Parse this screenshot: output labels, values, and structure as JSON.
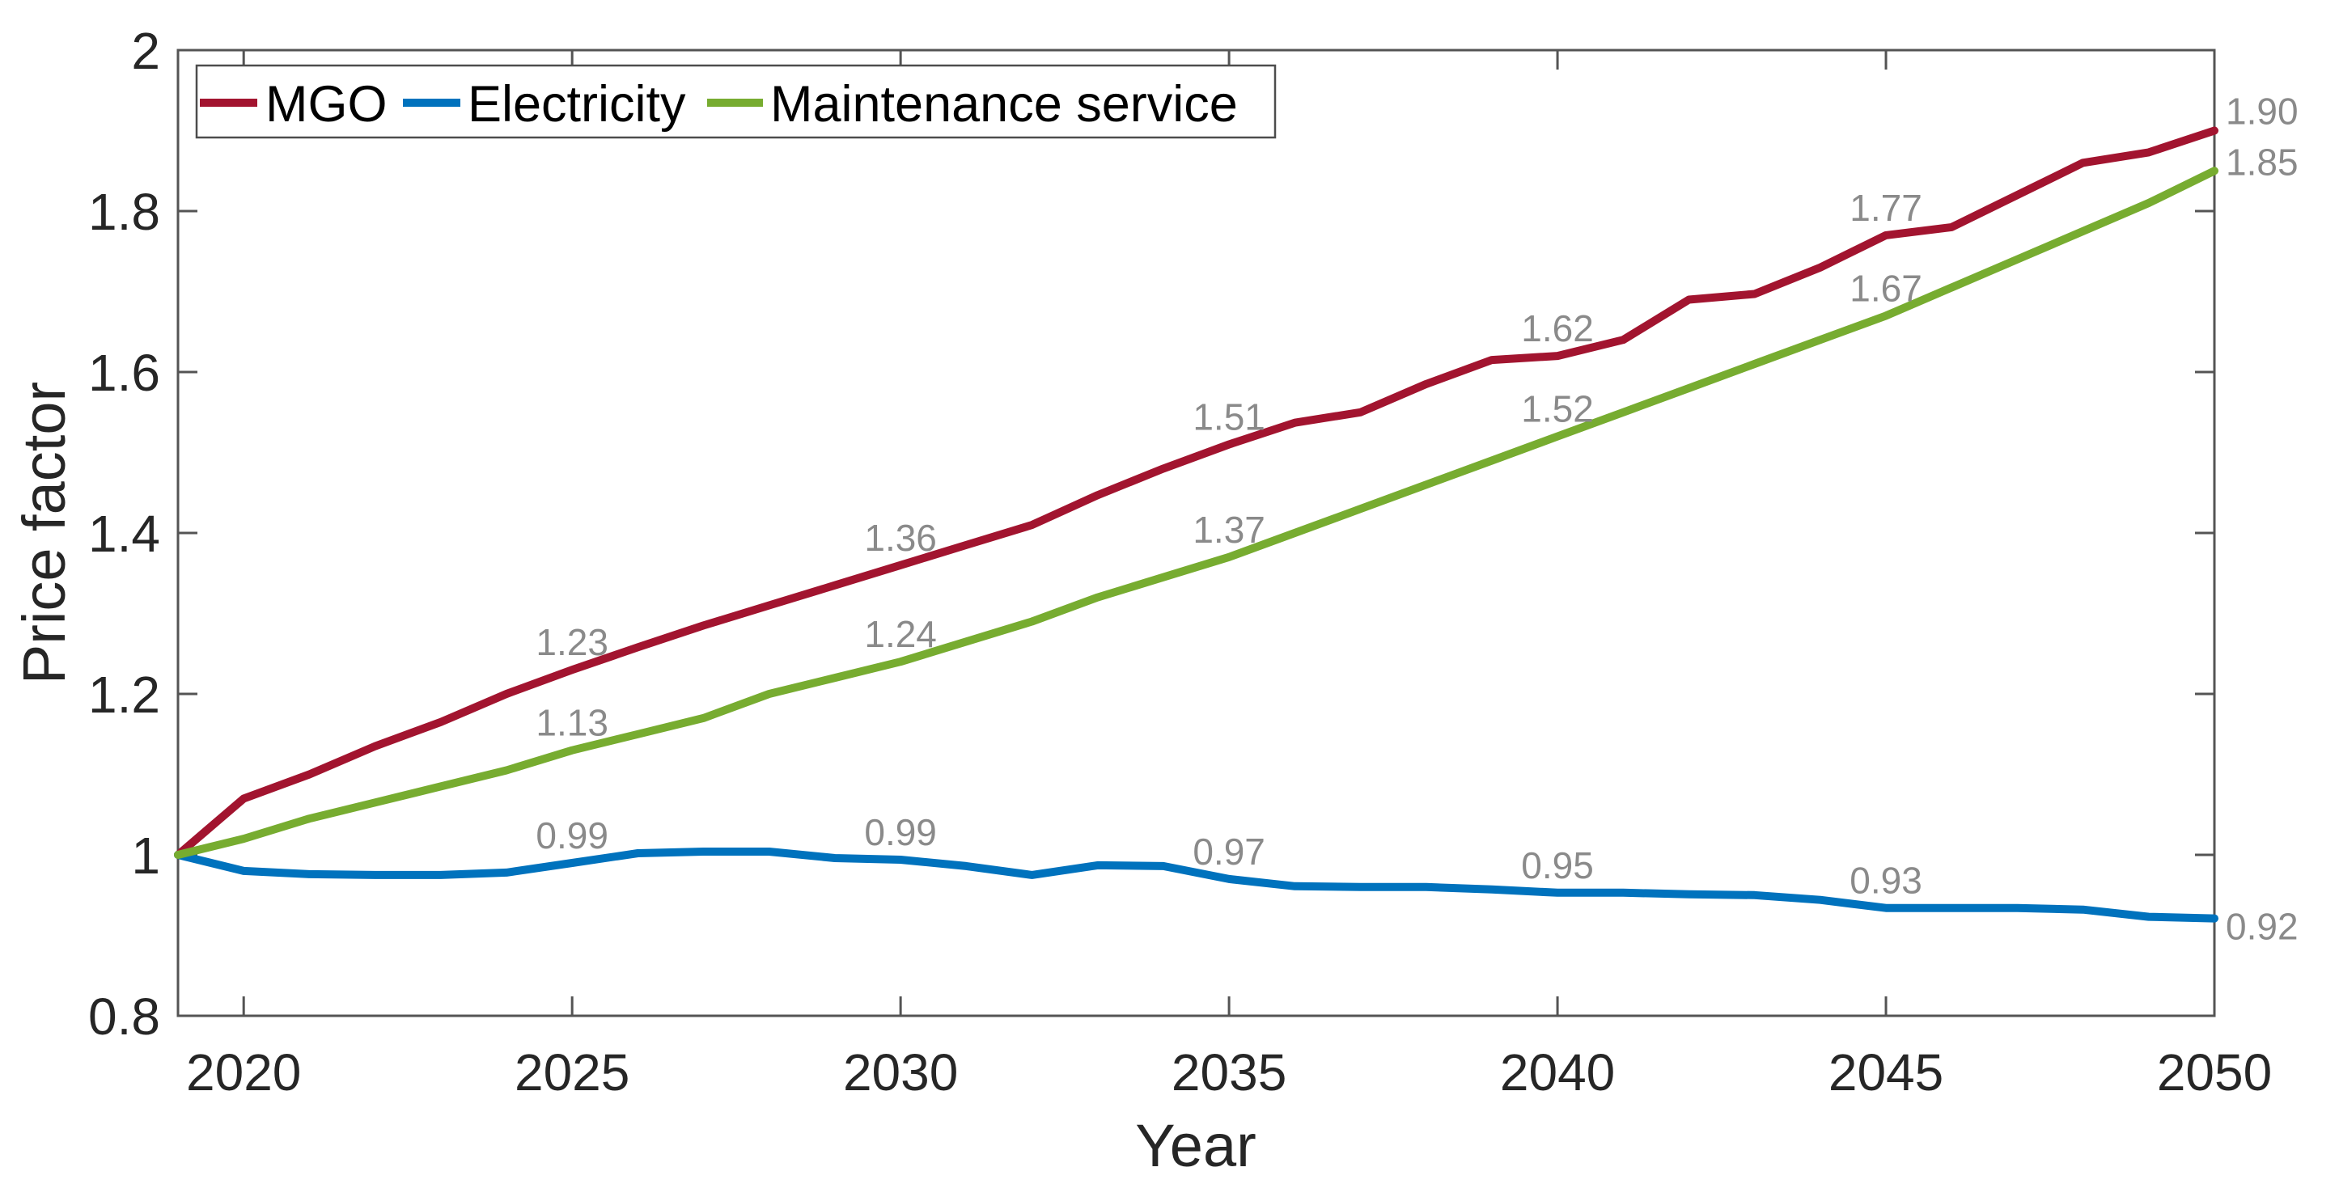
{
  "chart_data": {
    "type": "line",
    "title": "",
    "xlabel": "Year",
    "ylabel": "Price factor",
    "xlim": [
      2019,
      2050
    ],
    "ylim": [
      0.8,
      2
    ],
    "grid": false,
    "legend_position": "top-left-inside",
    "x_ticks": [
      2020,
      2025,
      2030,
      2035,
      2040,
      2045,
      2050
    ],
    "x_tick_labels": [
      "2020",
      "2025",
      "2030",
      "2035",
      "2040",
      "2045",
      "2050"
    ],
    "y_ticks": [
      0.8,
      1,
      1.2,
      1.4,
      1.6,
      1.8,
      2
    ],
    "y_tick_labels": [
      "0.8",
      "1",
      "1.2",
      "1.4",
      "1.6",
      "1.8",
      "2"
    ],
    "point_label_color": "#8a8a8a",
    "x": [
      2019,
      2020,
      2021,
      2022,
      2023,
      2024,
      2025,
      2026,
      2027,
      2028,
      2029,
      2030,
      2031,
      2032,
      2033,
      2034,
      2035,
      2036,
      2037,
      2038,
      2039,
      2040,
      2041,
      2042,
      2043,
      2044,
      2045,
      2046,
      2047,
      2048,
      2049,
      2050
    ],
    "series": [
      {
        "name": "MGO",
        "color": "#A2142F",
        "values": [
          1.0,
          1.07,
          1.1,
          1.135,
          1.165,
          1.2,
          1.23,
          1.258,
          1.285,
          1.31,
          1.335,
          1.36,
          1.385,
          1.41,
          1.447,
          1.48,
          1.51,
          1.537,
          1.55,
          1.585,
          1.615,
          1.62,
          1.64,
          1.69,
          1.697,
          1.73,
          1.77,
          1.78,
          1.82,
          1.86,
          1.873,
          1.9
        ],
        "point_labels": [
          {
            "year": 2025,
            "text": "1.23"
          },
          {
            "year": 2030,
            "text": "1.36"
          },
          {
            "year": 2035,
            "text": "1.51"
          },
          {
            "year": 2040,
            "text": "1.62"
          },
          {
            "year": 2045,
            "text": "1.77"
          }
        ],
        "end_label": "1.90"
      },
      {
        "name": "Electricity",
        "color": "#0072BD",
        "values": [
          1.0,
          0.98,
          0.976,
          0.975,
          0.975,
          0.978,
          0.99,
          1.002,
          1.004,
          1.004,
          0.996,
          0.994,
          0.986,
          0.975,
          0.987,
          0.986,
          0.97,
          0.961,
          0.96,
          0.96,
          0.957,
          0.953,
          0.953,
          0.951,
          0.95,
          0.944,
          0.934,
          0.934,
          0.934,
          0.932,
          0.923,
          0.921
        ],
        "point_labels": [
          {
            "year": 2025,
            "text": "0.99"
          },
          {
            "year": 2030,
            "text": "0.99"
          },
          {
            "year": 2035,
            "text": "0.97"
          },
          {
            "year": 2040,
            "text": "0.95"
          },
          {
            "year": 2045,
            "text": "0.93"
          }
        ],
        "end_label": "0.92"
      },
      {
        "name": "Maintenance service",
        "color": "#77AC30",
        "values": [
          1.0,
          1.02,
          1.045,
          1.065,
          1.085,
          1.105,
          1.13,
          1.15,
          1.17,
          1.2,
          1.22,
          1.24,
          1.265,
          1.29,
          1.32,
          1.345,
          1.37,
          1.4,
          1.43,
          1.46,
          1.49,
          1.52,
          1.55,
          1.58,
          1.61,
          1.64,
          1.67,
          1.705,
          1.74,
          1.775,
          1.81,
          1.85
        ],
        "point_labels": [
          {
            "year": 2025,
            "text": "1.13"
          },
          {
            "year": 2030,
            "text": "1.24"
          },
          {
            "year": 2035,
            "text": "1.37"
          },
          {
            "year": 2040,
            "text": "1.52"
          },
          {
            "year": 2045,
            "text": "1.67"
          }
        ],
        "end_label": "1.85"
      }
    ],
    "legend": {
      "items": [
        "MGO",
        "Electricity",
        "Maintenance service"
      ]
    }
  }
}
